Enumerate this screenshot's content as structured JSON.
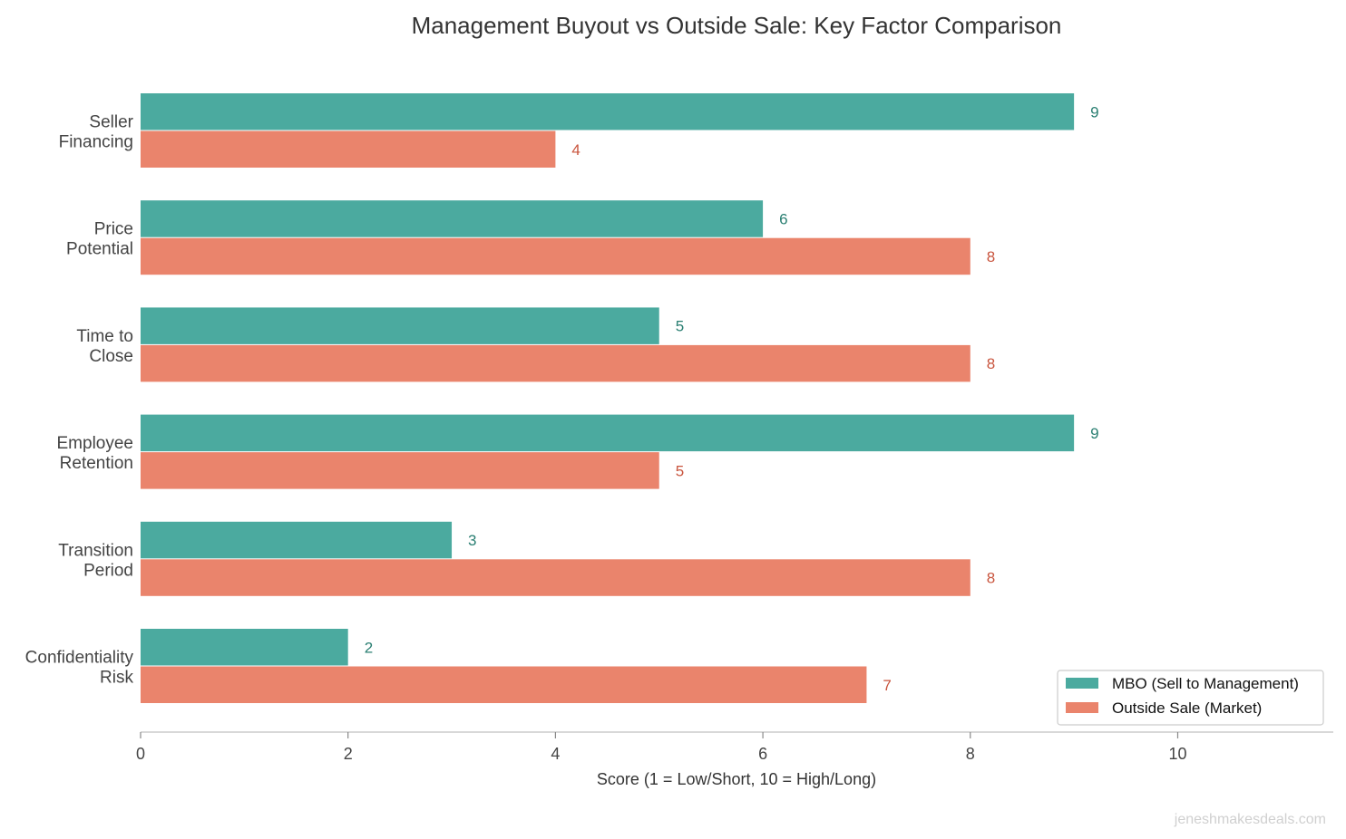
{
  "chart_data": {
    "type": "bar",
    "orientation": "horizontal",
    "title": "Management Buyout vs Outside Sale: Key Factor Comparison",
    "xlabel": "Score (1 = Low/Short, 10 = High/Long)",
    "ylabel": "",
    "xlim": [
      0,
      11.5
    ],
    "xticks": [
      "0",
      "2",
      "4",
      "6",
      "8",
      "10"
    ],
    "categories": [
      [
        "Seller",
        "Financing"
      ],
      [
        "Price",
        "Potential"
      ],
      [
        "Time to",
        "Close"
      ],
      [
        "Employee",
        "Retention"
      ],
      [
        "Transition",
        "Period"
      ],
      [
        "Confidentiality",
        "Risk"
      ]
    ],
    "series": [
      {
        "name": "MBO (Sell to Management)",
        "values": [
          9,
          6,
          5,
          9,
          3,
          2
        ],
        "color": "#4BAA9F",
        "label_color": "#2A7F72"
      },
      {
        "name": "Outside Sale (Market)",
        "values": [
          4,
          8,
          8,
          5,
          8,
          7
        ],
        "color": "#EA846C",
        "label_color": "#C9553E"
      }
    ],
    "grid": false,
    "legend": "bottom-right"
  },
  "watermark": "jeneshmakesdeals.com"
}
